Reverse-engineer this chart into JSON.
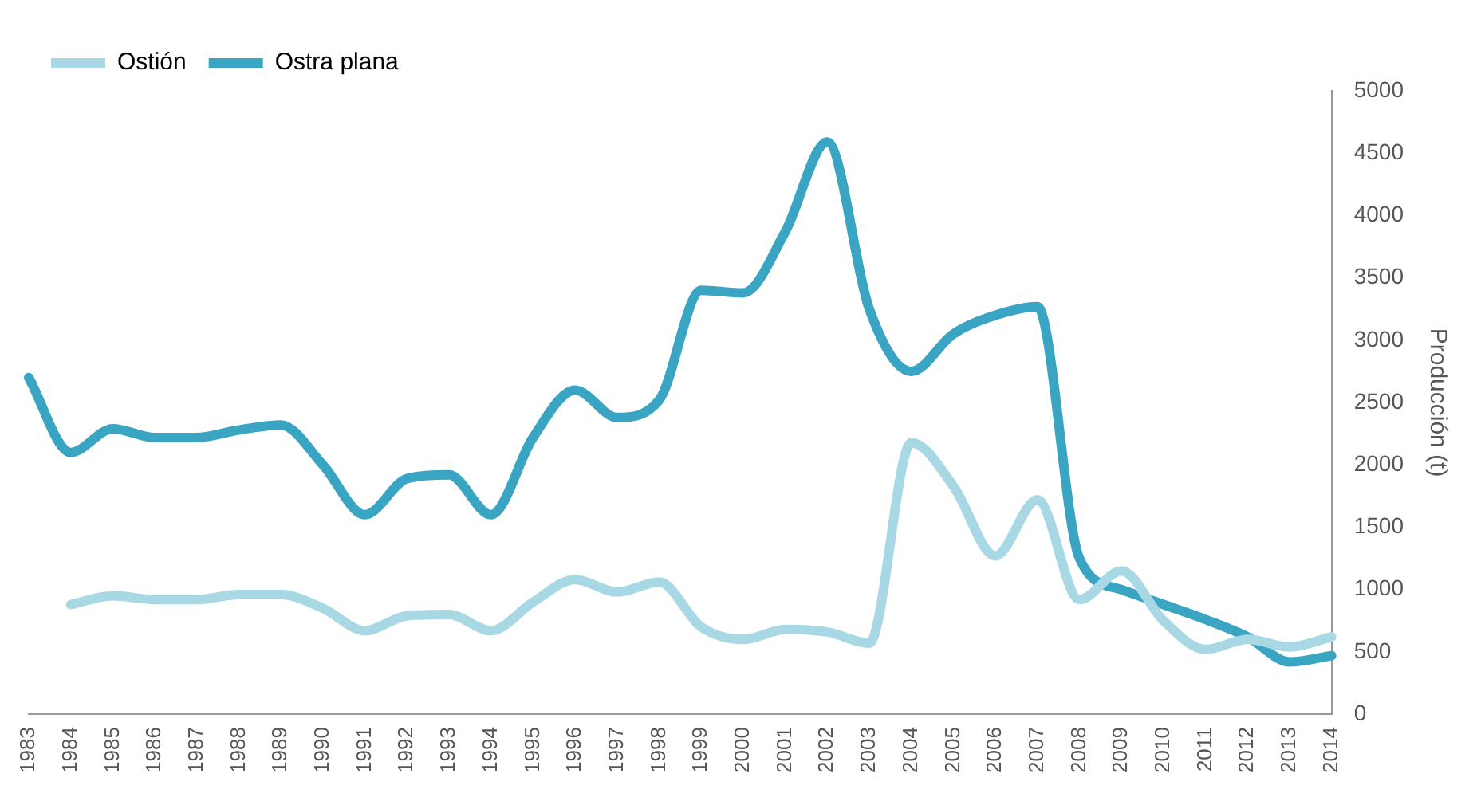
{
  "chart_data": {
    "type": "line",
    "ylabel": "Producción (t)",
    "categories": [
      "1983",
      "1984",
      "1985",
      "1986",
      "1987",
      "1988",
      "1989",
      "1990",
      "1991",
      "1992",
      "1993",
      "1994",
      "1995",
      "1996",
      "1997",
      "1998",
      "1999",
      "2000",
      "2001",
      "2002",
      "2003",
      "2004",
      "2005",
      "2006",
      "2007",
      "2008",
      "2009",
      "2010",
      "2011",
      "2012",
      "2013",
      "2014"
    ],
    "series": [
      {
        "name": "Ostión",
        "color": "#a8d8e4",
        "values": [
          null,
          880,
          950,
          920,
          920,
          960,
          960,
          850,
          670,
          790,
          800,
          670,
          900,
          1080,
          980,
          1060,
          700,
          600,
          680,
          660,
          570,
          2180,
          1830,
          1270,
          1720,
          920,
          1150,
          750,
          520,
          600,
          540,
          620
        ]
      },
      {
        "name": "Ostra plana",
        "color": "#3aa5c3",
        "values": [
          2700,
          2100,
          2290,
          2220,
          2220,
          2280,
          2320,
          2000,
          1600,
          1890,
          1920,
          1600,
          2220,
          2600,
          2380,
          2520,
          3400,
          3380,
          3870,
          4590,
          3250,
          2750,
          3050,
          3200,
          3270,
          1250,
          1000,
          880,
          760,
          620,
          420,
          470
        ]
      }
    ],
    "ylim": [
      0,
      5000
    ],
    "yticks": [
      0,
      500,
      1000,
      1500,
      2000,
      2500,
      3000,
      3500,
      4000,
      4500,
      5000
    ],
    "grid": false,
    "legend": "top left",
    "marker": "none",
    "line_style": "solid"
  }
}
